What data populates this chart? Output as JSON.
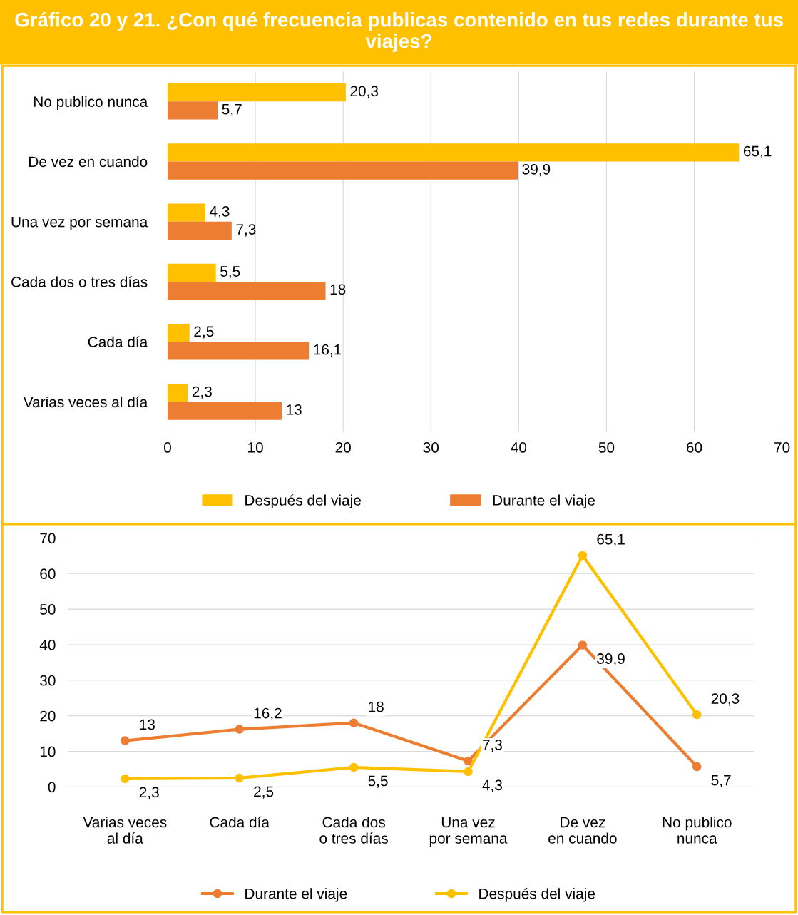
{
  "chart_data": [
    {
      "type": "bar",
      "orientation": "horizontal",
      "title": "Gráfico 20 y 21. ¿Con qué frecuencia publicas contenido en tus redes durante tus viajes?",
      "categories": [
        "No publico nunca",
        "De vez en cuando",
        "Una vez por semana",
        "Cada dos o tres días",
        "Cada día",
        "Varias veces al día"
      ],
      "series": [
        {
          "name": "Después del viaje",
          "color": "#ffc000",
          "values": [
            20.3,
            65.1,
            4.3,
            5.5,
            2.5,
            2.3
          ],
          "value_labels": [
            "20,3",
            "65,1",
            "4,3",
            "5,5",
            "2,5",
            "2,3"
          ]
        },
        {
          "name": "Durante el viaje",
          "color": "#ed7d31",
          "values": [
            5.7,
            39.9,
            7.3,
            18,
            16.1,
            13
          ],
          "value_labels": [
            "5,7",
            "39,9",
            "7,3",
            "18",
            "16,1",
            "13"
          ]
        }
      ],
      "xlim": [
        0,
        70
      ],
      "xticks": [
        0,
        10,
        20,
        30,
        40,
        50,
        60,
        70
      ],
      "grid": "x",
      "legend": "bottom"
    },
    {
      "type": "line",
      "categories": [
        "Varias veces\nal día",
        "Cada día",
        "Cada dos\no tres días",
        "Una vez\npor semana",
        "De vez\nen cuando",
        "No publico\nnunca"
      ],
      "series": [
        {
          "name": "Durante el viaje",
          "color": "#ed7d31",
          "values": [
            13,
            16.2,
            18,
            7.3,
            39.9,
            5.7
          ],
          "value_labels": [
            "13",
            "16,2",
            "18",
            "7,3",
            "39,9",
            "5,7"
          ]
        },
        {
          "name": "Después del viaje",
          "color": "#ffc000",
          "values": [
            2.3,
            2.5,
            5.5,
            4.3,
            65.1,
            20.3
          ],
          "value_labels": [
            "2,3",
            "2,5",
            "5,5",
            "4,3",
            "65,1",
            "20,3"
          ]
        }
      ],
      "ylim": [
        0,
        70
      ],
      "yticks": [
        0,
        10,
        20,
        30,
        40,
        50,
        60,
        70
      ],
      "grid": "y",
      "marker": "circle",
      "line_style": "solid",
      "legend": "bottom"
    }
  ]
}
